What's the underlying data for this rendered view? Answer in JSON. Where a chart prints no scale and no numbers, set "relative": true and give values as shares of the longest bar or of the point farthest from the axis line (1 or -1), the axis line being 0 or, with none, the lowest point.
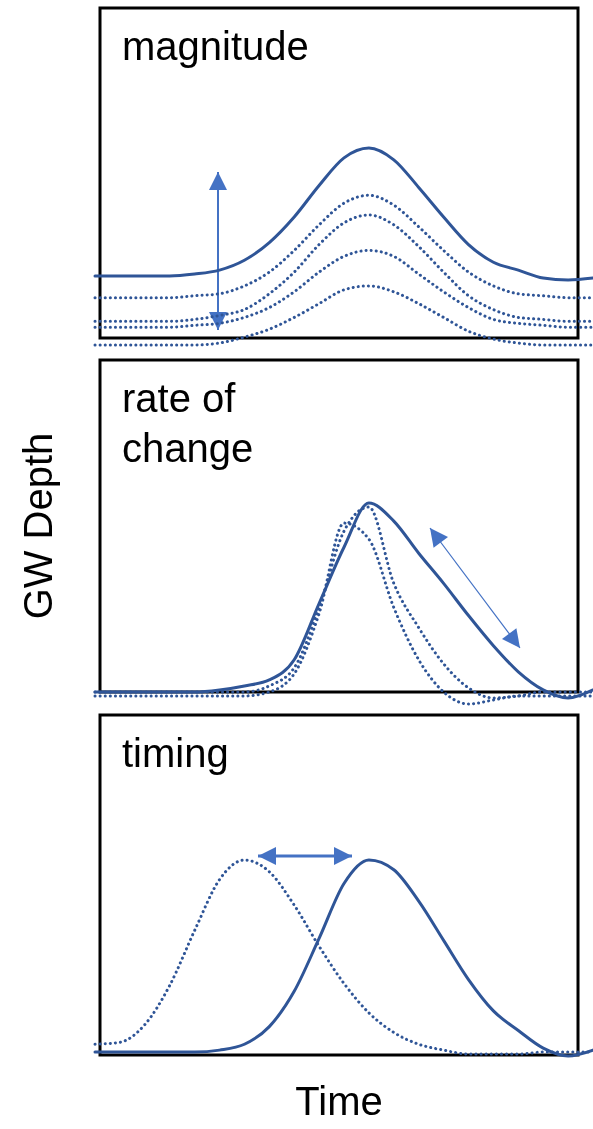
{
  "chart_data": [
    {
      "type": "line",
      "title": "magnitude",
      "relative": true,
      "categories": [
        null,
        null,
        null,
        null,
        null,
        null,
        null,
        null,
        null,
        null,
        null,
        null,
        null,
        null,
        null,
        null,
        null,
        null,
        null,
        null,
        null
      ],
      "series": [
        {
          "color": "#2f5597",
          "line_style": "solid",
          "values": [
            0.35,
            0.35,
            0.35,
            0.35,
            0.36,
            0.38,
            0.43,
            0.52,
            0.65,
            0.81,
            0.95,
            1.0,
            0.94,
            0.8,
            0.65,
            0.51,
            0.42,
            0.38,
            0.34,
            0.33,
            0.34
          ]
        },
        {
          "color": "#2f5597",
          "line_style": "dotted",
          "values": [
            0.24,
            0.24,
            0.24,
            0.24,
            0.25,
            0.26,
            0.3,
            0.37,
            0.48,
            0.61,
            0.72,
            0.76,
            0.71,
            0.6,
            0.48,
            0.37,
            0.3,
            0.26,
            0.25,
            0.24,
            0.24
          ]
        },
        {
          "color": "#2f5597",
          "line_style": "dotted",
          "values": [
            0.12,
            0.12,
            0.12,
            0.12,
            0.13,
            0.15,
            0.18,
            0.26,
            0.37,
            0.51,
            0.62,
            0.66,
            0.61,
            0.5,
            0.37,
            0.25,
            0.18,
            0.14,
            0.13,
            0.12,
            0.12
          ]
        },
        {
          "color": "#2f5597",
          "line_style": "dotted",
          "values": [
            0.09,
            0.09,
            0.09,
            0.09,
            0.1,
            0.11,
            0.14,
            0.19,
            0.27,
            0.37,
            0.45,
            0.48,
            0.45,
            0.36,
            0.27,
            0.19,
            0.13,
            0.11,
            0.1,
            0.09,
            0.09
          ]
        },
        {
          "color": "#2f5597",
          "line_style": "dotted",
          "values": [
            0,
            0,
            0,
            0,
            0,
            0.01,
            0.04,
            0.08,
            0.14,
            0.21,
            0.28,
            0.3,
            0.27,
            0.21,
            0.14,
            0.07,
            0.03,
            0.01,
            0,
            0,
            0
          ]
        }
      ]
    },
    {
      "type": "line",
      "title": "rate of change",
      "ylabel": "GW Depth",
      "relative": true,
      "categories": [
        null,
        null,
        null,
        null,
        null,
        null,
        null,
        null,
        null,
        null,
        null,
        null,
        null,
        null,
        null,
        null,
        null,
        null,
        null,
        null,
        null
      ],
      "series": [
        {
          "color": "#2f5597",
          "line_style": "solid",
          "values": [
            0.06,
            0.06,
            0.06,
            0.06,
            0.06,
            0.07,
            0.09,
            0.12,
            0.22,
            0.5,
            0.78,
            1.0,
            0.91,
            0.75,
            0.6,
            0.44,
            0.29,
            0.16,
            0.07,
            0.03,
            0.07
          ]
        },
        {
          "color": "#2f5597",
          "line_style": "dotted",
          "values": [
            0.06,
            0.06,
            0.06,
            0.06,
            0.06,
            0.06,
            0.06,
            0.09,
            0.18,
            0.48,
            0.86,
            0.98,
            0.6,
            0.38,
            0.2,
            0.08,
            0.03,
            0.04,
            0.06,
            0.06,
            0.06
          ]
        },
        {
          "color": "#2f5597",
          "line_style": "dotted",
          "values": [
            0.04,
            0.04,
            0.04,
            0.04,
            0.04,
            0.04,
            0.04,
            0.06,
            0.15,
            0.45,
            0.9,
            0.82,
            0.48,
            0.22,
            0.06,
            0,
            0.02,
            0.04,
            0.04,
            0.04,
            0.04
          ]
        }
      ]
    },
    {
      "type": "line",
      "title": "timing",
      "xlabel": "Time",
      "relative": true,
      "categories": [
        null,
        null,
        null,
        null,
        null,
        null,
        null,
        null,
        null,
        null,
        null,
        null,
        null,
        null,
        null,
        null,
        null,
        null,
        null,
        null,
        null
      ],
      "series": [
        {
          "color": "#2f5597",
          "line_style": "solid",
          "values": [
            0.02,
            0.02,
            0.02,
            0.02,
            0.02,
            0.03,
            0.06,
            0.15,
            0.33,
            0.6,
            0.88,
            1.0,
            0.95,
            0.79,
            0.59,
            0.39,
            0.23,
            0.13,
            0.04,
            0,
            0.03
          ]
        },
        {
          "color": "#2f5597",
          "line_style": "dotted",
          "values": [
            0.06,
            0.07,
            0.16,
            0.36,
            0.64,
            0.9,
            1.0,
            0.94,
            0.77,
            0.56,
            0.37,
            0.22,
            0.12,
            0.06,
            0.03,
            0.01,
            0.01,
            0.01,
            0.02,
            0.02,
            0.02
          ]
        }
      ]
    }
  ]
}
